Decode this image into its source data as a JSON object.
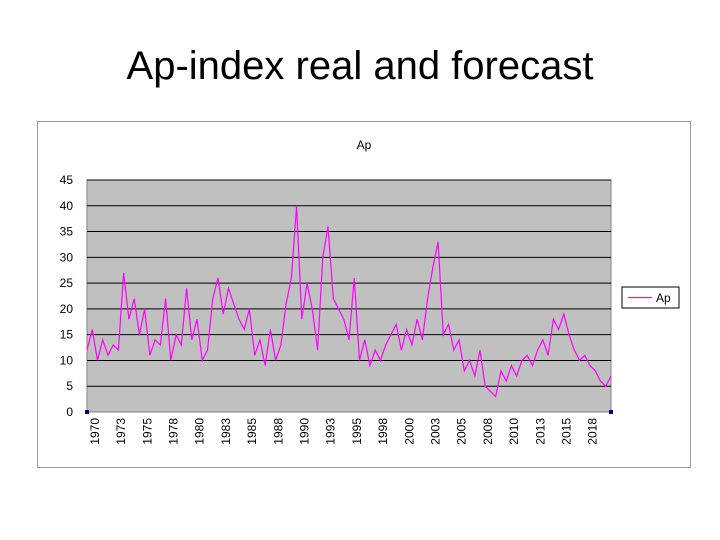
{
  "slide": {
    "title": "Ap-index real and forecast"
  },
  "chart_data": {
    "type": "line",
    "title": "Ap",
    "xlabel": "",
    "ylabel": "",
    "ylim": [
      0,
      45
    ],
    "y_ticks": [
      0,
      5,
      10,
      15,
      20,
      25,
      30,
      35,
      40,
      45
    ],
    "x_ticks": [
      "1970",
      "1973",
      "1975",
      "1978",
      "1980",
      "1983",
      "1985",
      "1988",
      "1990",
      "1993",
      "1995",
      "1998",
      "2000",
      "2003",
      "2005",
      "2008",
      "2010",
      "2013",
      "2015",
      "2018"
    ],
    "grid": true,
    "plot_background": "#c0c0c0",
    "legend_position": "right",
    "series": [
      {
        "name": "Ap",
        "color": "#ff00ff",
        "x": [
          1970.0,
          1970.5,
          1971.0,
          1971.5,
          1972.0,
          1972.5,
          1973.0,
          1973.5,
          1974.0,
          1974.5,
          1975.0,
          1975.5,
          1976.0,
          1976.5,
          1977.0,
          1977.5,
          1978.0,
          1978.5,
          1979.0,
          1979.5,
          1980.0,
          1980.5,
          1981.0,
          1981.5,
          1982.0,
          1982.5,
          1983.0,
          1983.5,
          1984.0,
          1984.5,
          1985.0,
          1985.5,
          1986.0,
          1986.5,
          1987.0,
          1987.5,
          1988.0,
          1988.5,
          1989.0,
          1989.5,
          1990.0,
          1990.5,
          1991.0,
          1991.5,
          1992.0,
          1992.5,
          1993.0,
          1993.5,
          1994.0,
          1994.5,
          1995.0,
          1995.5,
          1996.0,
          1996.5,
          1997.0,
          1997.5,
          1998.0,
          1998.5,
          1999.0,
          1999.5,
          2000.0,
          2000.5,
          2001.0,
          2001.5,
          2002.0,
          2002.5,
          2003.0,
          2003.5,
          2004.0,
          2004.5,
          2005.0,
          2005.5,
          2006.0,
          2006.5,
          2007.0,
          2007.5,
          2008.0,
          2008.5,
          2009.0,
          2009.5,
          2010.0,
          2010.5,
          2011.0,
          2011.5,
          2012.0,
          2012.5,
          2013.0,
          2013.5,
          2014.0,
          2014.5,
          2015.0,
          2015.5,
          2016.0,
          2016.5,
          2017.0,
          2017.5,
          2018.0,
          2018.5,
          2019.0,
          2019.5,
          2020.0
        ],
        "values": [
          12,
          16,
          10,
          14,
          11,
          13,
          12,
          27,
          18,
          22,
          15,
          20,
          11,
          14,
          13,
          22,
          10,
          15,
          13,
          24,
          14,
          18,
          10,
          12,
          22,
          26,
          19,
          24,
          21,
          18,
          16,
          20,
          11,
          14,
          9,
          16,
          10,
          13,
          21,
          26,
          40,
          18,
          25,
          20,
          12,
          30,
          36,
          22,
          20,
          18,
          14,
          26,
          10,
          14,
          9,
          12,
          10,
          13,
          15,
          17,
          12,
          16,
          13,
          18,
          14,
          22,
          28,
          33,
          15,
          17,
          12,
          14,
          8,
          10,
          7,
          12,
          5,
          4,
          3,
          8,
          6,
          9,
          7,
          10,
          11,
          9,
          12,
          14,
          11,
          18,
          16,
          19,
          15,
          12,
          10,
          11,
          9,
          8,
          6,
          5,
          7
        ]
      }
    ]
  }
}
